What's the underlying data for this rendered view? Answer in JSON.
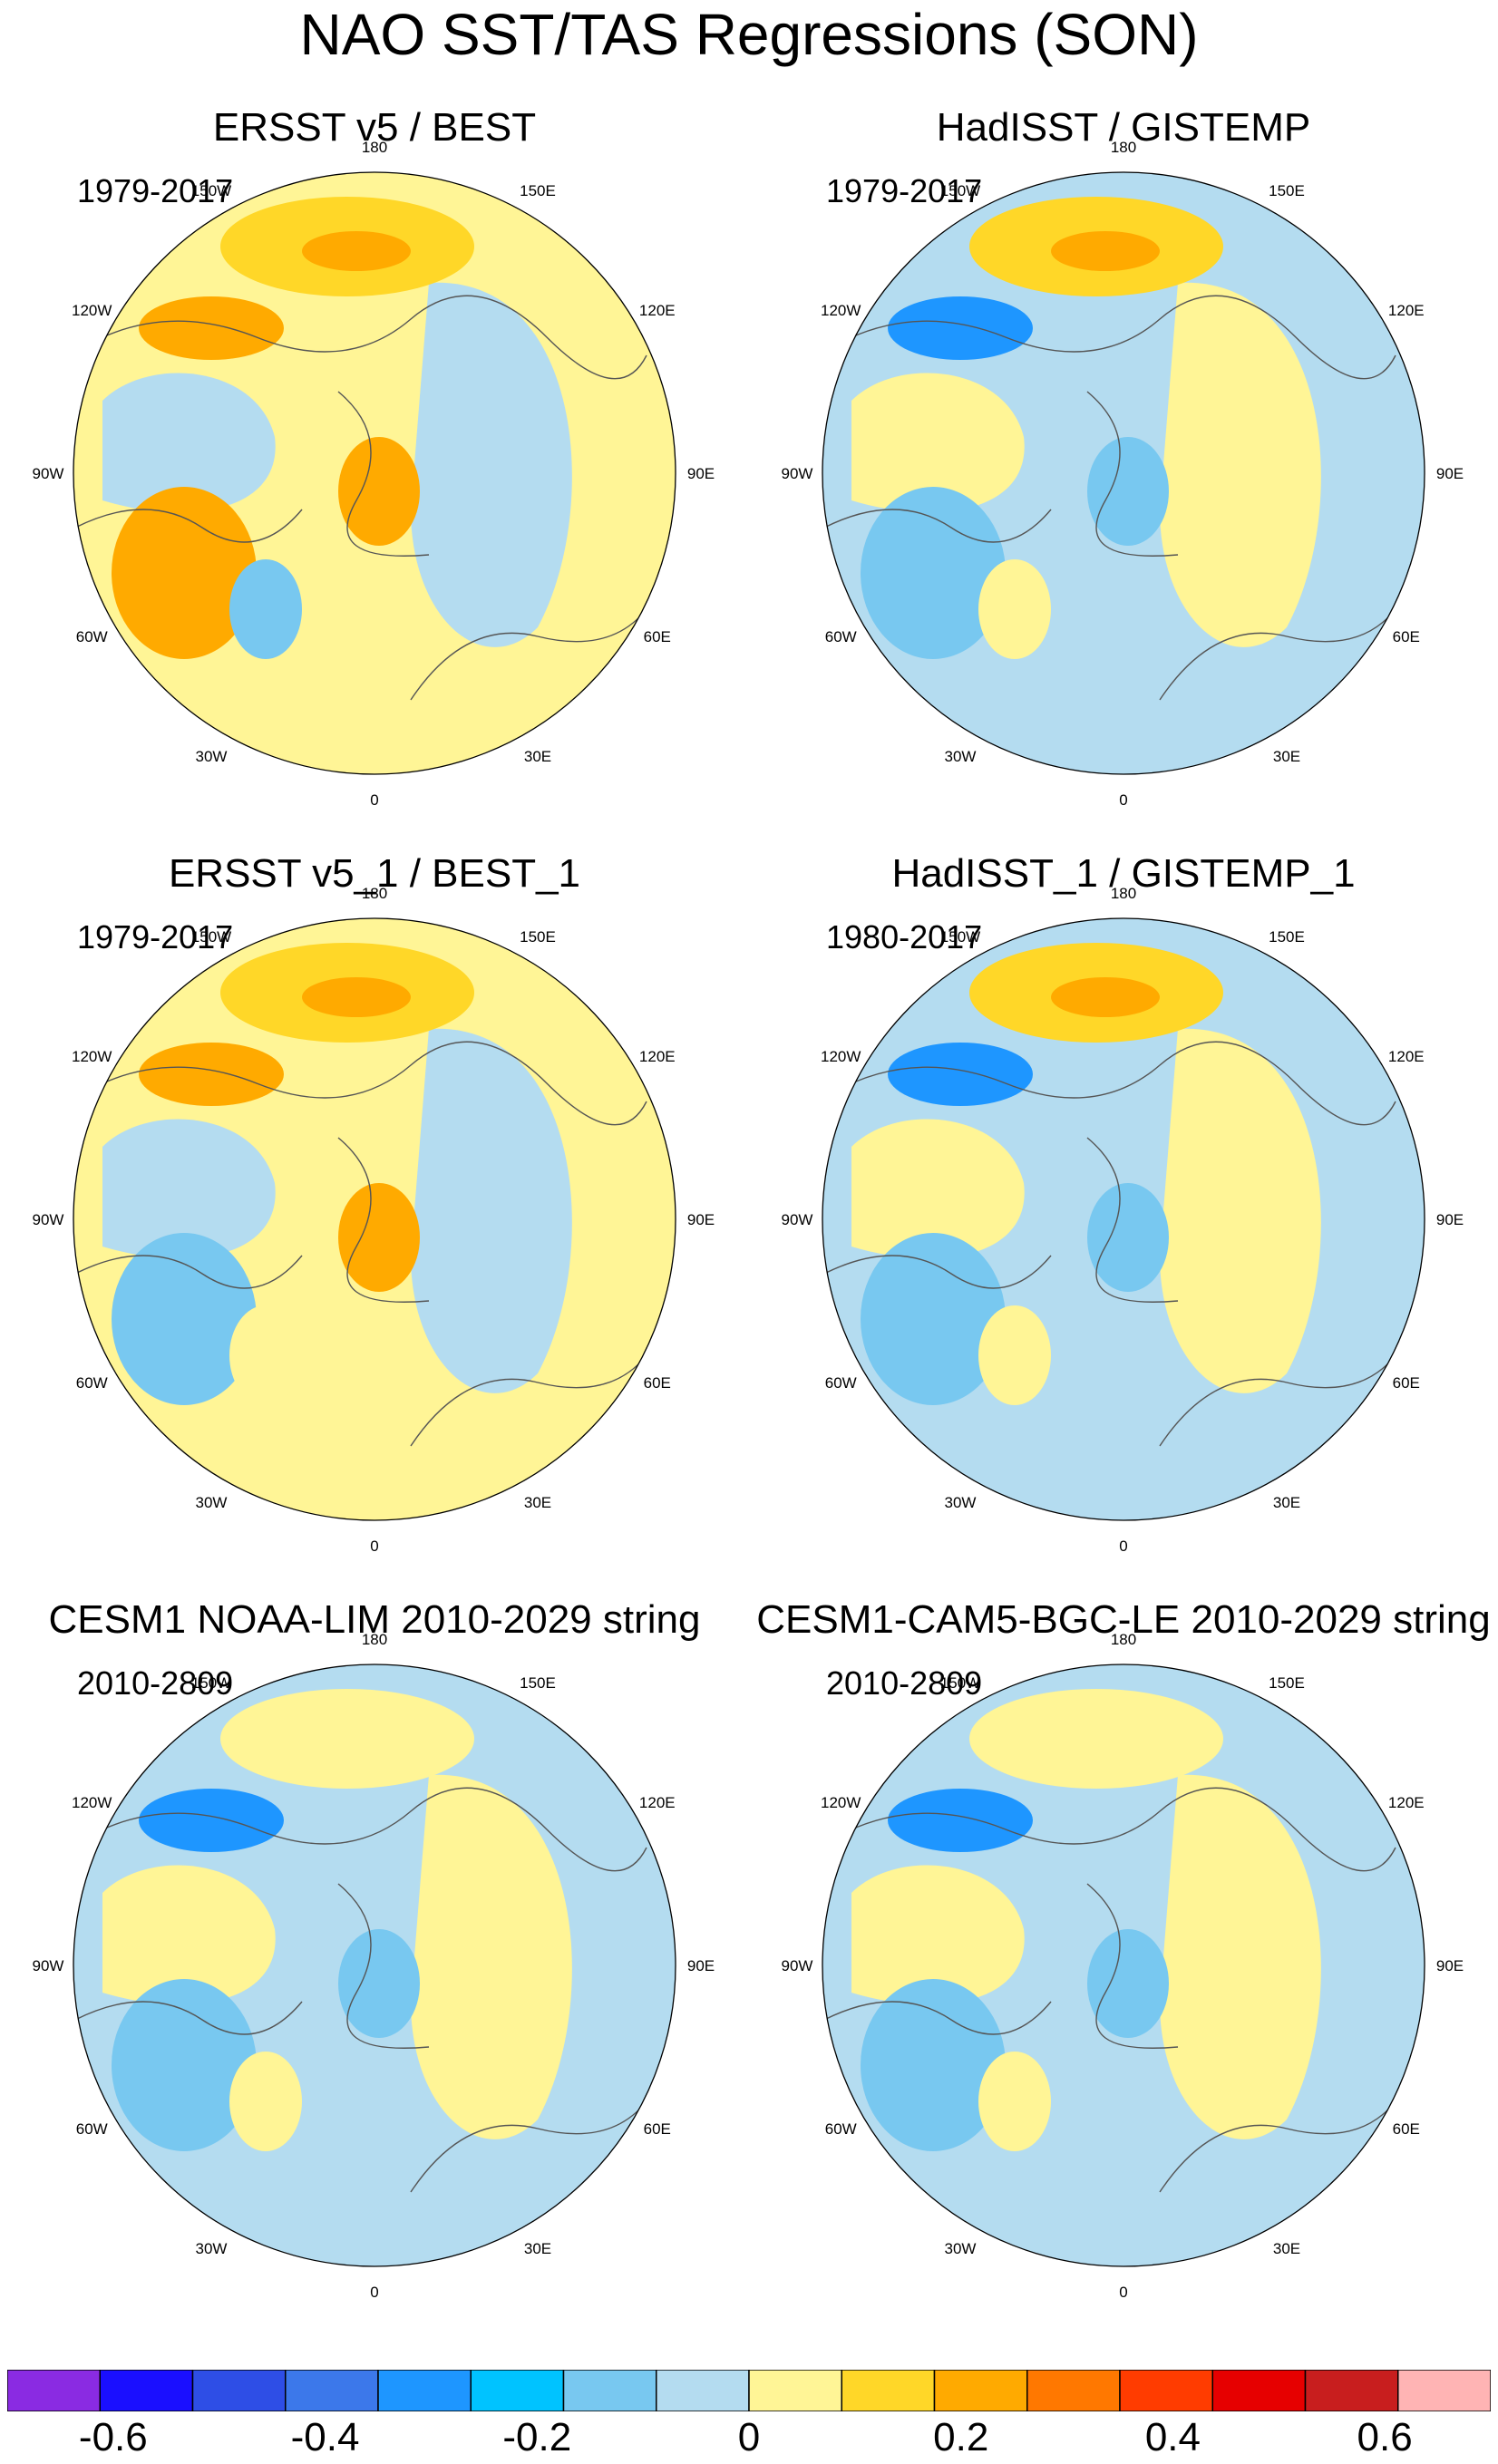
{
  "figure": {
    "title": "NAO SST/TAS Regressions (SON)",
    "longitude_labels": [
      "180",
      "150E",
      "120E",
      "90E",
      "60E",
      "30E",
      "0",
      "30W",
      "60W",
      "90W",
      "120W",
      "150W"
    ]
  },
  "panels": [
    {
      "title": "ERSST v5 / BEST",
      "period": "1979-2017",
      "ocean_level": "warm",
      "northpac": "warm",
      "northatl": "warm"
    },
    {
      "title": "HadISST / GISTEMP",
      "period": "1979-2017",
      "ocean_level": "cool",
      "northpac": "warm",
      "northatl": "cool"
    },
    {
      "title": "ERSST v5_1 / BEST_1",
      "period": "1979-2017",
      "ocean_level": "warm",
      "northpac": "warm",
      "northatl": "cool"
    },
    {
      "title": "HadISST_1 / GISTEMP_1",
      "period": "1980-2017",
      "ocean_level": "cool",
      "northpac": "warm",
      "northatl": "cool"
    },
    {
      "title": "CESM1 NOAA-LIM 2010-2029 string",
      "period": "2010-2809",
      "ocean_level": "cool",
      "northpac": "neutral-warm",
      "northatl": "cool"
    },
    {
      "title": "CESM1-CAM5-BGC-LE 2010-2029 string",
      "period": "2010-2809",
      "ocean_level": "cool",
      "northpac": "neutral-warm",
      "northatl": "cool"
    }
  ],
  "colorbar": {
    "colors": [
      "#8a2be2",
      "#1a0fff",
      "#2e4ee6",
      "#3c78ea",
      "#1e96ff",
      "#00c3ff",
      "#78c8f0",
      "#b4dcf0",
      "#fff596",
      "#ffd728",
      "#ffaa00",
      "#ff7800",
      "#ff3c00",
      "#e60000",
      "#c81e1e",
      "#ffb4b4"
    ],
    "labels": [
      "-0.6",
      "-0.4",
      "-0.2",
      "0",
      "0.2",
      "0.4",
      "0.6"
    ],
    "label_values": [
      -0.6,
      -0.4,
      -0.2,
      0,
      0.2,
      0.4,
      0.6
    ],
    "min": -0.7,
    "max": 0.7
  }
}
